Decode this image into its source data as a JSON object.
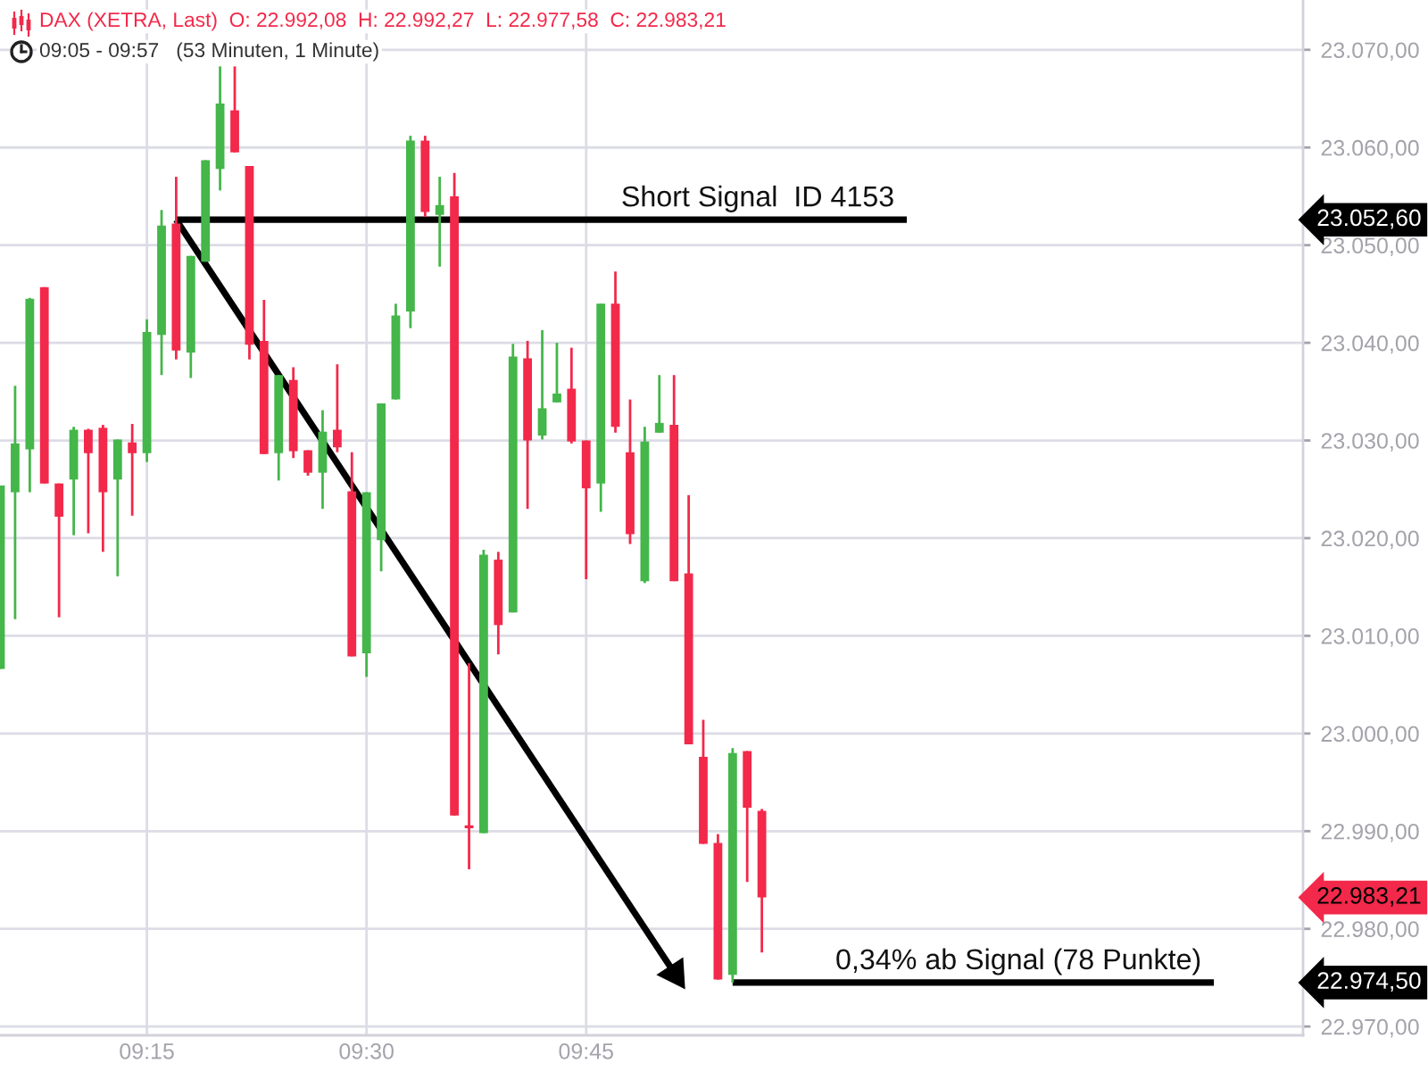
{
  "chart_data": {
    "type": "candlestick",
    "title": "DAX (XETRA, Last)  O: 22.992,08  H: 22.992,27  L: 22.977,58  C: 22.983,21",
    "subtitle": "09:05 - 09:57   (53 Minuten, 1 Minute)",
    "x": [
      9.0833,
      9.1,
      9.1167,
      9.1333,
      9.15,
      9.1667,
      9.1833,
      9.2,
      9.2167,
      9.2333,
      9.25,
      9.2667,
      9.2833,
      9.3,
      9.3167,
      9.3333,
      9.35,
      9.3667,
      9.3833,
      9.4,
      9.4167,
      9.4333,
      9.45,
      9.4667,
      9.4833,
      9.5,
      9.5167,
      9.5333,
      9.55,
      9.5667,
      9.5833,
      9.6,
      9.6167,
      9.6333,
      9.65,
      9.6667,
      9.6833,
      9.7,
      9.7167,
      9.7333,
      9.75,
      9.7667,
      9.7833,
      9.8,
      9.8167,
      9.8333,
      9.85,
      9.8667,
      9.8833,
      9.9,
      9.9167,
      9.9333,
      9.95
    ],
    "ohlc": [
      [
        23006.6,
        23025.4,
        23006.6,
        23025.4
      ],
      [
        23024.7,
        23035.6,
        23011.7,
        23029.7
      ],
      [
        23029.1,
        23044.6,
        23024.7,
        23044.5
      ],
      [
        23045.7,
        23045.7,
        23025.6,
        23025.6
      ],
      [
        23025.6,
        23025.6,
        23011.9,
        23022.2
      ],
      [
        23026.0,
        23031.4,
        23020.3,
        23031.1
      ],
      [
        23031.1,
        23031.2,
        23020.5,
        23028.7
      ],
      [
        23031.3,
        23031.6,
        23018.6,
        23024.7
      ],
      [
        23026.0,
        23030.1,
        23016.1,
        23030.1
      ],
      [
        23029.8,
        23031.7,
        23022.3,
        23028.7
      ],
      [
        23028.7,
        23042.4,
        23027.8,
        23041.1
      ],
      [
        23040.8,
        23053.6,
        23036.7,
        23052.0
      ],
      [
        23052.2,
        23057.0,
        23038.3,
        23039.2
      ],
      [
        23039.0,
        23048.9,
        23036.4,
        23048.9
      ],
      [
        23048.3,
        23058.7,
        23048.3,
        23058.7
      ],
      [
        23057.8,
        23068.3,
        23055.6,
        23064.5
      ],
      [
        23063.8,
        23068.3,
        23059.5,
        23059.5
      ],
      [
        23058.1,
        23058.1,
        23038.3,
        23039.8
      ],
      [
        23040.2,
        23044.4,
        23028.6,
        23028.6
      ],
      [
        23028.7,
        23036.7,
        23025.9,
        23036.7
      ],
      [
        23036.2,
        23037.5,
        23028.2,
        23028.9
      ],
      [
        23029.0,
        23029.0,
        23026.4,
        23026.7
      ],
      [
        23026.7,
        23033.1,
        23023.0,
        23030.9
      ],
      [
        23031.1,
        23037.8,
        23028.8,
        23029.3
      ],
      [
        23024.8,
        23028.8,
        23007.9,
        23007.9
      ],
      [
        23008.2,
        23024.7,
        23005.8,
        23024.7
      ],
      [
        23019.8,
        23033.8,
        23016.6,
        23033.8
      ],
      [
        23034.2,
        23044.0,
        23034.2,
        23042.8
      ],
      [
        23043.2,
        23061.2,
        23041.5,
        23060.7
      ],
      [
        23060.7,
        23061.2,
        23052.9,
        23053.4
      ],
      [
        23053.1,
        23057.0,
        23047.8,
        23054.1
      ],
      [
        23055.0,
        23057.4,
        22991.6,
        22991.6
      ],
      [
        22990.6,
        23007.2,
        22986.1,
        22990.3
      ],
      [
        22989.8,
        23018.8,
        22989.8,
        23018.3
      ],
      [
        23017.8,
        23018.6,
        23008.1,
        23011.1
      ],
      [
        23012.4,
        23039.9,
        23012.4,
        23038.6
      ],
      [
        23038.4,
        23040.2,
        23023.0,
        23030.0
      ],
      [
        23030.5,
        23041.3,
        23030.1,
        23033.3
      ],
      [
        23033.9,
        23040.0,
        23033.9,
        23034.8
      ],
      [
        23035.3,
        23039.5,
        23029.7,
        23029.9
      ],
      [
        23030.0,
        23030.0,
        23015.8,
        23025.1
      ],
      [
        23025.6,
        23044.0,
        23022.7,
        23044.0
      ],
      [
        23044.0,
        23047.3,
        23030.8,
        23031.4
      ],
      [
        23028.8,
        23034.2,
        23019.4,
        23020.4
      ],
      [
        23015.6,
        23031.4,
        23015.4,
        23029.9
      ],
      [
        23030.8,
        23036.7,
        23030.8,
        23031.8
      ],
      [
        23031.6,
        23036.7,
        23015.6,
        23015.6
      ],
      [
        23016.4,
        23024.4,
        22998.9,
        22998.9
      ],
      [
        22997.6,
        23001.4,
        22988.7,
        22988.7
      ],
      [
        22988.8,
        22989.7,
        22974.8,
        22974.8
      ],
      [
        22975.3,
        22998.5,
        22974.5,
        22998.0
      ],
      [
        22998.2,
        22998.2,
        22984.8,
        22992.4
      ],
      [
        22992.08,
        22992.27,
        22977.58,
        22983.21
      ]
    ],
    "colors": [
      "#44b64a",
      "#44b64a",
      "#44b64a",
      "#f2294a",
      "#f2294a",
      "#44b64a",
      "#f2294a",
      "#f2294a",
      "#44b64a",
      "#f2294a",
      "#44b64a",
      "#44b64a",
      "#f2294a",
      "#44b64a",
      "#44b64a",
      "#44b64a",
      "#f2294a",
      "#f2294a",
      "#f2294a",
      "#44b64a",
      "#f2294a",
      "#f2294a",
      "#44b64a",
      "#f2294a",
      "#f2294a",
      "#44b64a",
      "#44b64a",
      "#44b64a",
      "#44b64a",
      "#f2294a",
      "#44b64a",
      "#f2294a",
      "#f2294a",
      "#44b64a",
      "#f2294a",
      "#44b64a",
      "#f2294a",
      "#44b64a",
      "#44b64a",
      "#f2294a",
      "#f2294a",
      "#44b64a",
      "#f2294a",
      "#f2294a",
      "#44b64a",
      "#44b64a",
      "#f2294a",
      "#f2294a",
      "#f2294a",
      "#f2294a",
      "#44b64a",
      "#f2294a",
      "#f2294a"
    ],
    "series": [
      {
        "type": "line",
        "name": "Short Signal  ID 4153",
        "color": "#000000",
        "line_style": "solid",
        "x": [
          9.2833,
          10.115
        ],
        "values": [
          23052.6,
          23052.6
        ]
      },
      {
        "type": "line",
        "name": "0,34% ab Signal (78 Punkte)",
        "color": "#000000",
        "line_style": "solid",
        "x": [
          9.9167,
          10.4645
        ],
        "values": [
          22974.5,
          22974.5
        ]
      },
      {
        "type": "line",
        "color": "#000000",
        "line_style": "solid",
        "marker": "triangle",
        "x": [
          9.2833,
          9.851
        ],
        "values": [
          23052.6,
          22975.4
        ]
      }
    ],
    "annotations": [
      "23.052,60",
      "22.983,21",
      "22.974,50"
    ],
    "xlim": [
      9.0828,
      10.566
    ],
    "xticks": [
      {
        "value": 9.25,
        "label": "09:15"
      },
      {
        "value": 9.5,
        "label": "09:30"
      },
      {
        "value": 9.75,
        "label": "09:45"
      }
    ],
    "ylim": [
      22969.1,
      23075.1
    ],
    "yticks": [
      {
        "value": 22970,
        "label": "22.970,00"
      },
      {
        "value": 22980,
        "label": "22.980,00"
      },
      {
        "value": 22990,
        "label": "22.990,00"
      },
      {
        "value": 23000,
        "label": "23.000,00"
      },
      {
        "value": 23010,
        "label": "23.010,00"
      },
      {
        "value": 23020,
        "label": "23.020,00"
      },
      {
        "value": 23030,
        "label": "23.030,00"
      },
      {
        "value": 23040,
        "label": "23.040,00"
      },
      {
        "value": 23050,
        "label": "23.050,00"
      },
      {
        "value": 23060,
        "label": "23.060,00"
      },
      {
        "value": 23070,
        "label": "23.070,00"
      }
    ],
    "grid": true
  }
}
